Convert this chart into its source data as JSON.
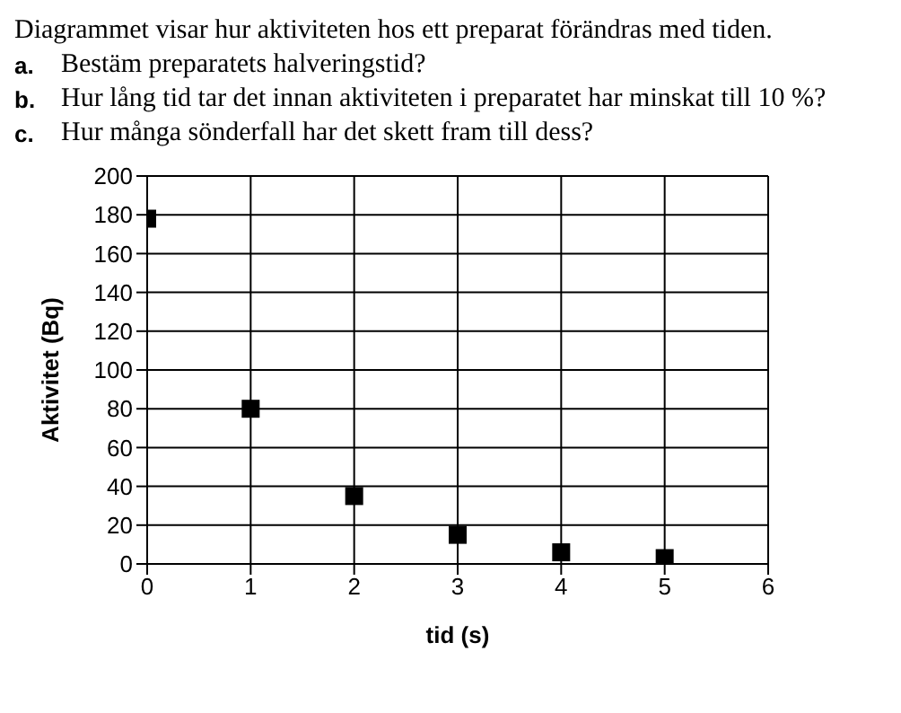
{
  "chart_data": {
    "type": "scatter",
    "title": "Diagrammet visar hur aktiviteten hos ett preparat förändras med tiden.",
    "annotations": [
      "a. Bestäm preparatets halveringstid?",
      "b. Hur lång tid tar det innan aktiviteten i preparatet har minskat till 10 %?",
      "c. Hur många sönderfall har det skett fram till dess?"
    ],
    "xlabel": "tid (s)",
    "ylabel": "Aktivitet (Bq)",
    "x": [
      0,
      1,
      2,
      3,
      4,
      5
    ],
    "series": [
      {
        "color": "#000000",
        "values": [
          178,
          80,
          35,
          15,
          6,
          3
        ]
      }
    ],
    "xlim": [
      0,
      6
    ],
    "xticks": [
      0,
      1,
      2,
      3,
      4,
      5,
      6
    ],
    "ylim": [
      0,
      200
    ],
    "yticks": [
      0,
      20,
      40,
      60,
      80,
      100,
      120,
      140,
      160,
      180,
      200
    ],
    "grid": true,
    "marker": "square",
    "legend": false
  }
}
